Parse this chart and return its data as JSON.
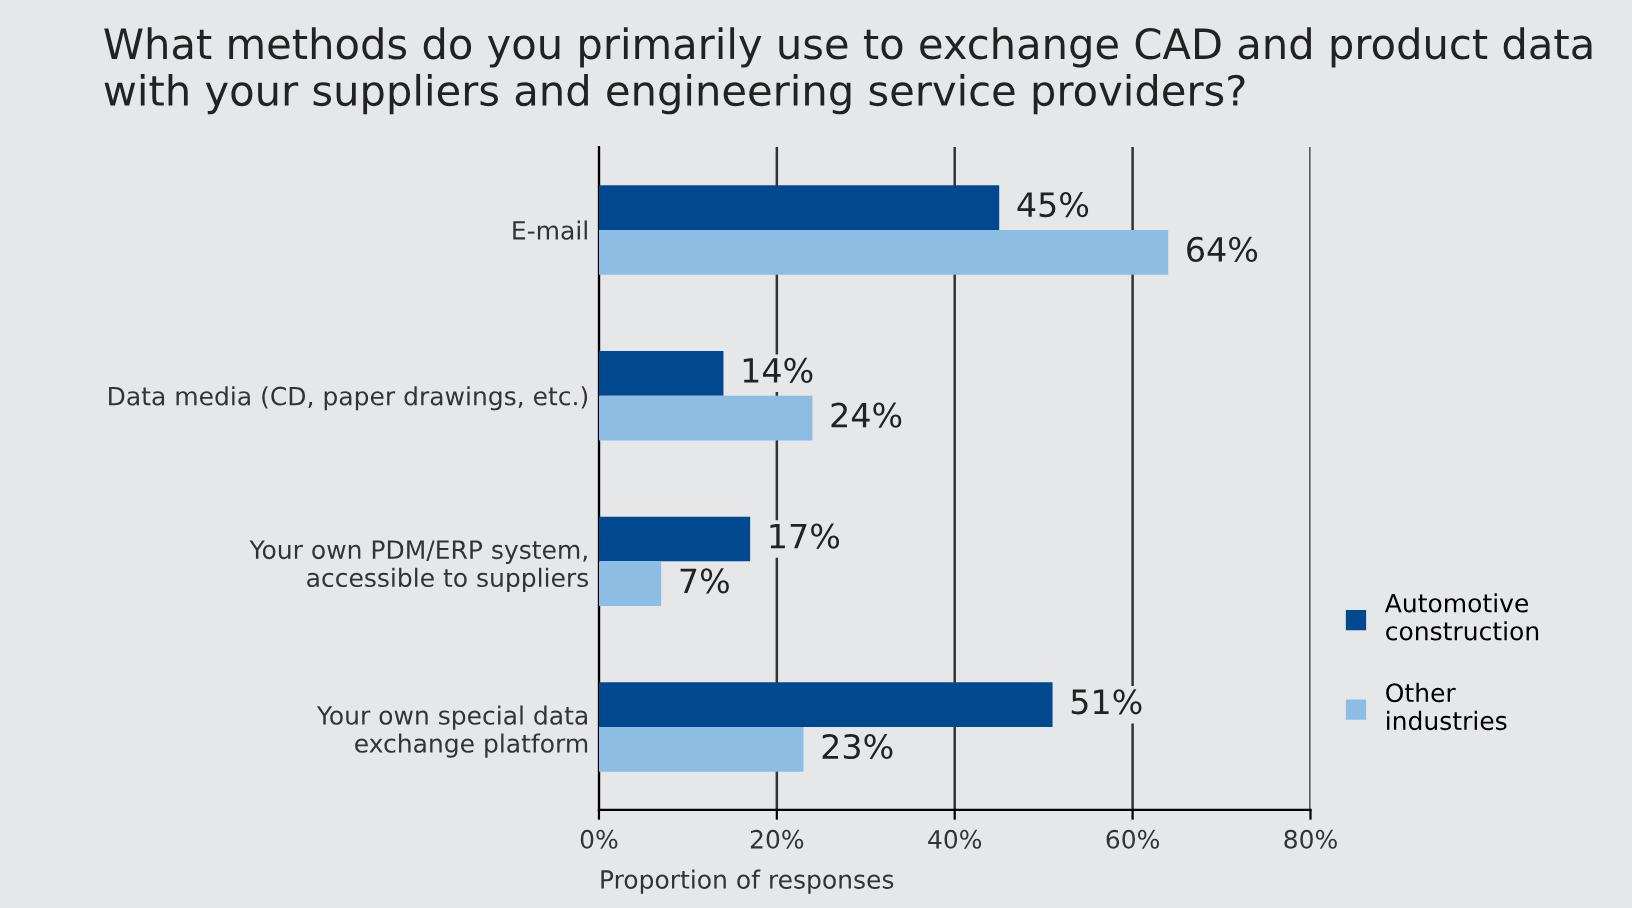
{
  "chart_data": {
    "type": "bar",
    "orientation": "horizontal",
    "title": "What methods do you primarily use to exchange CAD and product data\nwith your suppliers and engineering service providers?",
    "xlabel": "Proportion of responses",
    "categories": [
      "E-mail",
      "Data media (CD, paper drawings, etc.)",
      "Your own PDM/ERP system,\naccessible to suppliers",
      "Your own special data\nexchange platform"
    ],
    "series": [
      {
        "name": "Automotive\nconstruction",
        "color": "#00498f",
        "values": [
          45,
          14,
          17,
          51
        ],
        "value_labels": [
          "45%",
          "14%",
          "17%",
          "51%"
        ]
      },
      {
        "name": "Other\nindustries",
        "color": "#8dbde3",
        "values": [
          64,
          24,
          7,
          23
        ],
        "value_labels": [
          "64%",
          "24%",
          "7%",
          "23%"
        ]
      }
    ],
    "xlim": [
      0,
      80
    ],
    "xticks": [
      {
        "value": 0,
        "label": "0%"
      },
      {
        "value": 20,
        "label": "20%"
      },
      {
        "value": 40,
        "label": "40%"
      },
      {
        "value": 60,
        "label": "60%"
      },
      {
        "value": 80,
        "label": "80%"
      }
    ],
    "grid": "x",
    "legend": "right"
  }
}
